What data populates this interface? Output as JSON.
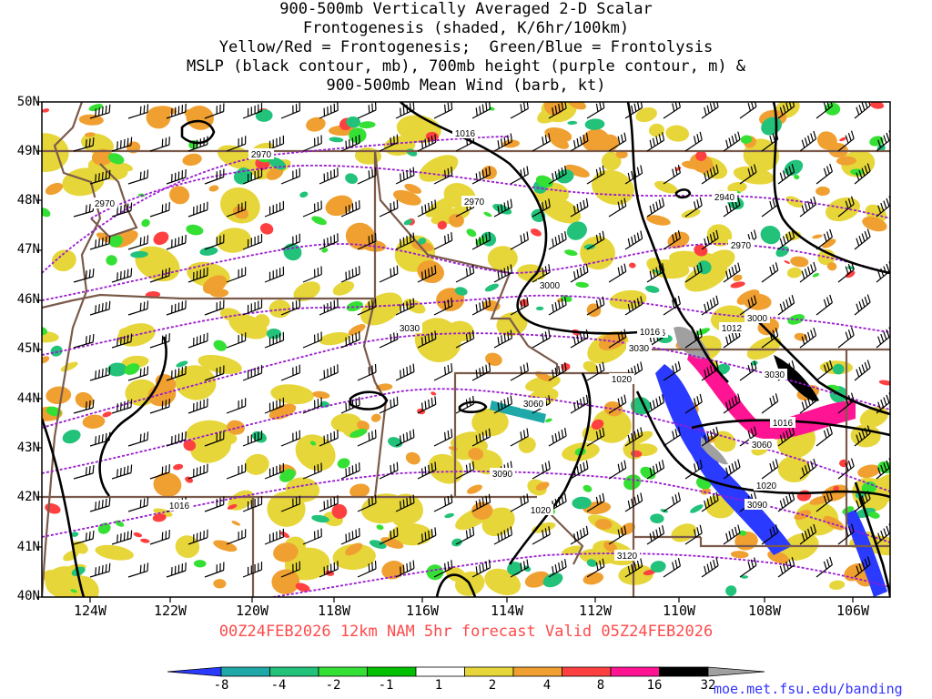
{
  "title_lines": [
    "900-500mb Vertically Averaged 2-D Scalar",
    "Frontogenesis (shaded, K/6hr/100km)",
    "Yellow/Red = Frontogenesis;  Green/Blue = Frontolysis",
    "MSLP (black contour, mb), 700mb height (purple contour, m) &",
    "900-500mb Mean Wind (barb, kt)"
  ],
  "lat_labels": [
    "50N",
    "49N",
    "48N",
    "47N",
    "46N",
    "45N",
    "44N",
    "43N",
    "42N",
    "41N",
    "40N"
  ],
  "lon_labels": [
    "124W",
    "122W",
    "120W",
    "118W",
    "116W",
    "114W",
    "112W",
    "110W",
    "108W",
    "106W"
  ],
  "valid_line": "00Z24FEB2026 12km NAM 5hr forecast Valid 05Z24FEB2026",
  "url": "moe.met.fsu.edu/banding",
  "colorbar": {
    "labels": [
      "-8",
      "-4",
      "-2",
      "-1",
      "1",
      "2",
      "4",
      "8",
      "16",
      "32"
    ],
    "colors": [
      "#2a3aff",
      "#1fa8a8",
      "#22c27a",
      "#35e035",
      "#00c000",
      "#ffffff",
      "#e6d63a",
      "#f0a030",
      "#ff4040",
      "#ff1493",
      "#000000",
      "#a0a0a0"
    ]
  },
  "mslp_labels": [
    "1016",
    "1016",
    "1016",
    "1012",
    "1016",
    "1020",
    "1020",
    "1020",
    "1016"
  ],
  "height_labels": [
    "2970",
    "2970",
    "2970",
    "2940",
    "2970",
    "3000",
    "3000",
    "3030",
    "3030",
    "3030",
    "3060",
    "3060",
    "3090",
    "3090",
    "3120"
  ]
}
